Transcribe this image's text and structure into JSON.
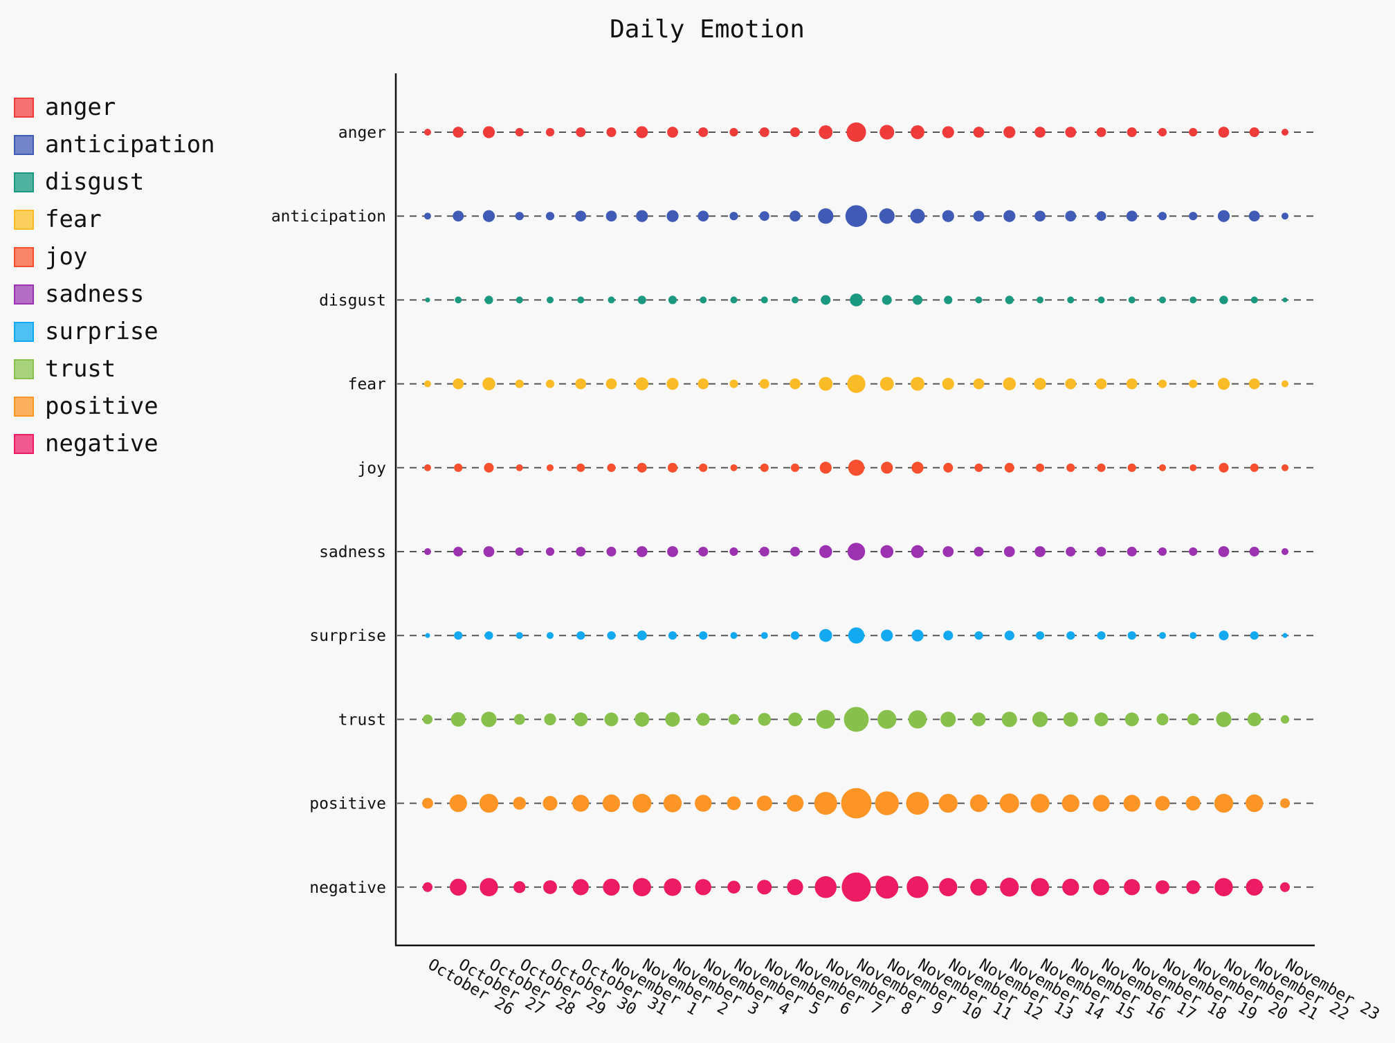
{
  "chart_data": {
    "type": "scatter",
    "title": "Daily Emotion",
    "xlabel": "",
    "ylabel": "",
    "grid": false,
    "legend_position": "top-left",
    "categories": [
      "October 26",
      "October 27",
      "October 28",
      "October 29",
      "October 30",
      "October 31",
      "November 1",
      "November 2",
      "November 3",
      "November 4",
      "November 5",
      "November 6",
      "November 7",
      "November 8",
      "November 9",
      "November 10",
      "November 11",
      "November 12",
      "November 13",
      "November 14",
      "November 15",
      "November 16",
      "November 17",
      "November 18",
      "November 19",
      "November 20",
      "November 21",
      "November 22",
      "November 23"
    ],
    "series": [
      {
        "name": "anger",
        "color": "#f03b3b",
        "legend_color": "#f47272",
        "values": [
          2,
          5,
          6,
          3,
          3,
          4,
          4,
          6,
          5,
          4,
          3,
          4,
          4,
          8,
          16,
          9,
          8,
          6,
          5,
          6,
          5,
          5,
          4,
          4,
          3,
          3,
          5,
          4,
          2
        ]
      },
      {
        "name": "anticipation",
        "color": "#3f5bb5",
        "legend_color": "#7285c9",
        "values": [
          2,
          5,
          6,
          3,
          3,
          5,
          5,
          6,
          6,
          5,
          3,
          4,
          5,
          10,
          20,
          10,
          9,
          6,
          5,
          6,
          5,
          5,
          4,
          5,
          3,
          3,
          6,
          5,
          2
        ]
      },
      {
        "name": "disgust",
        "color": "#1a9980",
        "legend_color": "#4fb29f",
        "values": [
          1,
          2,
          3,
          2,
          2,
          2,
          2,
          3,
          3,
          2,
          2,
          2,
          2,
          4,
          7,
          4,
          4,
          3,
          2,
          3,
          2,
          2,
          2,
          2,
          2,
          2,
          3,
          2,
          1
        ]
      },
      {
        "name": "fear",
        "color": "#fbbb26",
        "legend_color": "#fbcf5d",
        "values": [
          2,
          5,
          7,
          3,
          3,
          5,
          5,
          7,
          6,
          5,
          3,
          4,
          5,
          8,
          14,
          8,
          8,
          6,
          5,
          7,
          6,
          5,
          5,
          5,
          3,
          3,
          6,
          5,
          2
        ]
      },
      {
        "name": "joy",
        "color": "#f8502f",
        "legend_color": "#f98569",
        "values": [
          2,
          3,
          4,
          2,
          2,
          3,
          3,
          4,
          4,
          3,
          2,
          3,
          3,
          6,
          11,
          6,
          6,
          4,
          3,
          4,
          3,
          3,
          3,
          3,
          2,
          2,
          4,
          3,
          2
        ]
      },
      {
        "name": "sadness",
        "color": "#9c32b0",
        "legend_color": "#b56ec5",
        "values": [
          2,
          4,
          5,
          3,
          3,
          4,
          4,
          5,
          5,
          4,
          3,
          4,
          4,
          7,
          13,
          7,
          7,
          5,
          4,
          5,
          5,
          4,
          4,
          4,
          3,
          3,
          5,
          4,
          2
        ]
      },
      {
        "name": "surprise",
        "color": "#12a9f1",
        "legend_color": "#4dc0f4",
        "values": [
          1,
          3,
          3,
          2,
          2,
          3,
          3,
          4,
          3,
          3,
          2,
          2,
          3,
          7,
          11,
          6,
          6,
          4,
          3,
          4,
          3,
          3,
          3,
          3,
          2,
          2,
          4,
          3,
          1
        ]
      },
      {
        "name": "trust",
        "color": "#87c04a",
        "legend_color": "#a8d27b",
        "values": [
          4,
          9,
          10,
          5,
          6,
          8,
          8,
          9,
          9,
          7,
          5,
          7,
          8,
          15,
          26,
          15,
          14,
          10,
          8,
          10,
          10,
          9,
          8,
          8,
          6,
          6,
          10,
          8,
          3
        ]
      },
      {
        "name": "positive",
        "color": "#fc9426",
        "legend_color": "#fdb05e",
        "values": [
          5,
          13,
          15,
          7,
          9,
          12,
          13,
          15,
          14,
          12,
          8,
          10,
          12,
          22,
          39,
          24,
          22,
          15,
          13,
          16,
          15,
          13,
          12,
          12,
          9,
          9,
          15,
          13,
          4
        ]
      },
      {
        "name": "negative",
        "color": "#ec1b63",
        "legend_color": "#f15a8f",
        "values": [
          4,
          12,
          14,
          6,
          8,
          11,
          12,
          14,
          13,
          11,
          7,
          9,
          11,
          20,
          36,
          22,
          20,
          14,
          12,
          15,
          14,
          12,
          11,
          11,
          8,
          8,
          14,
          12,
          4
        ]
      }
    ]
  }
}
